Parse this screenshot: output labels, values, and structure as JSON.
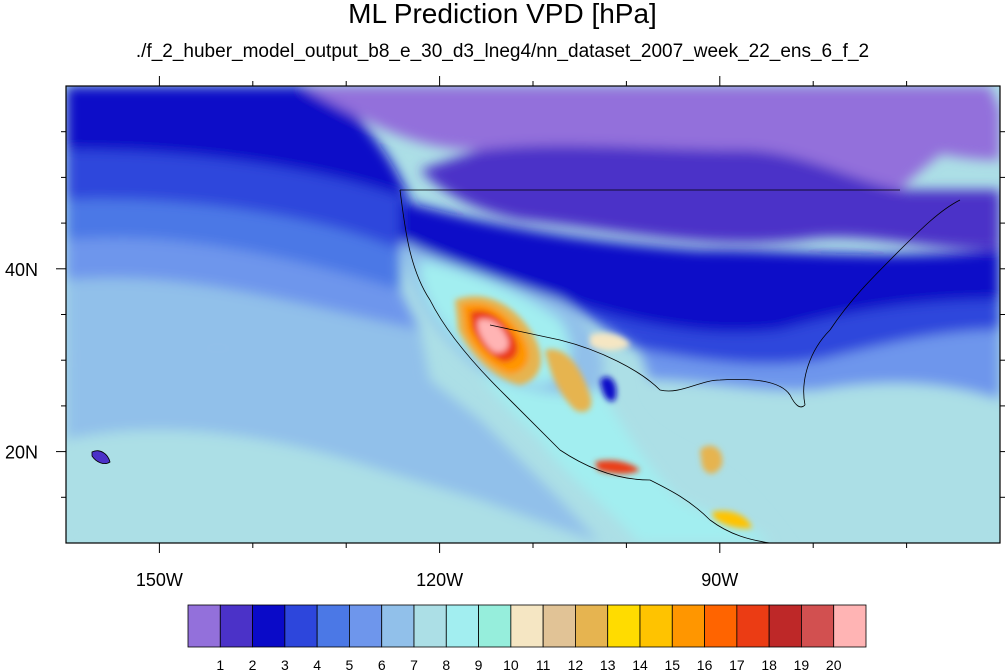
{
  "title": "ML Prediction VPD [hPa]",
  "subtitle": "./f_2_huber_model_output_b8_e_30_d3_lneg4/nn_dataset_2007_week_22_ens_6_f_2",
  "map": {
    "longitude_labels": [
      {
        "lon": -150,
        "label": "150W"
      },
      {
        "lon": -120,
        "label": "120W"
      },
      {
        "lon": -90,
        "label": "90W"
      }
    ],
    "latitude_labels": [
      {
        "lat": 40,
        "label": "40N"
      },
      {
        "lat": 20,
        "label": "20N"
      }
    ],
    "lon_range": [
      -160,
      -60
    ],
    "lat_range": [
      10,
      60
    ]
  },
  "colorbar": {
    "colors": [
      "#9370db",
      "#4b32c8",
      "#0a0ac8",
      "#2d46dc",
      "#4b78e6",
      "#6e96ec",
      "#91c0ea",
      "#acdfe6",
      "#a2eef0",
      "#96eedc",
      "#f5e6c3",
      "#e1c396",
      "#e6b450",
      "#ffdc00",
      "#ffc300",
      "#ff9600",
      "#ff6400",
      "#eb3c14",
      "#be2828",
      "#d25050",
      "#ffb4b4"
    ],
    "labels": [
      "1",
      "2",
      "3",
      "4",
      "5",
      "6",
      "7",
      "8",
      "9",
      "10",
      "11",
      "12",
      "13",
      "14",
      "15",
      "16",
      "17",
      "18",
      "19",
      "20"
    ]
  }
}
